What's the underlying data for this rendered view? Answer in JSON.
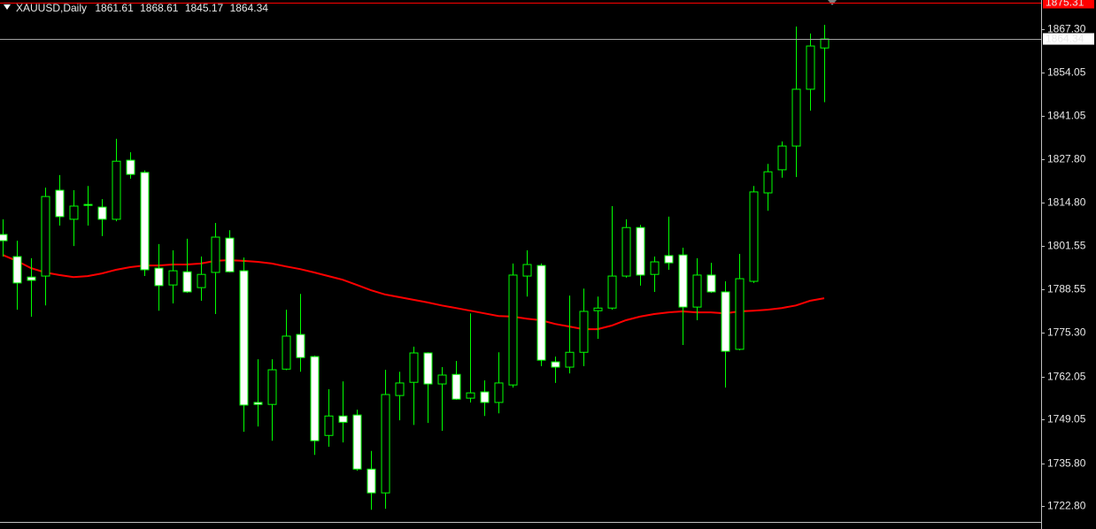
{
  "chart_data": {
    "type": "candlestick",
    "symbol": "XAUUSD,Daily",
    "open": [
      1805.1,
      1798.4,
      1792.2,
      1792.5,
      1818.5,
      1809.7,
      1814.2,
      1813.4,
      1809.7,
      1827.6,
      1823.9,
      1794.9,
      1789.8,
      1793.8,
      1789.0,
      1793.6,
      1804.0,
      1794.1,
      1754.2,
      1753.6,
      1764.3,
      1774.8,
      1768.1,
      1744.2,
      1750.1,
      1750.4,
      1734.0,
      1726.8,
      1756.3,
      1760.3,
      1769.2,
      1759.8,
      1762.7,
      1755.5,
      1757.4,
      1754.2,
      1759.5,
      1792.5,
      1795.7,
      1766.5,
      1764.9,
      1769.4,
      1782.0,
      1782.8,
      1792.5,
      1807.2,
      1793.0,
      1798.7,
      1798.9,
      1783.1,
      1792.8,
      1787.7,
      1770.3,
      1790.9,
      1817.7,
      1824.7,
      1831.9,
      1849.1,
      1861.61
    ],
    "high": [
      1809.7,
      1803.2,
      1797.9,
      1819.3,
      1823.1,
      1818.5,
      1819.8,
      1815.8,
      1834.1,
      1830.0,
      1824.5,
      1802.2,
      1800.3,
      1803.8,
      1798.4,
      1808.6,
      1806.4,
      1798.1,
      1767.3,
      1767.3,
      1782.3,
      1787.1,
      1768.4,
      1758.2,
      1760.6,
      1752.0,
      1739.5,
      1764.1,
      1763.5,
      1771.1,
      1769.4,
      1764.9,
      1766.8,
      1781.2,
      1760.9,
      1769.4,
      1796.3,
      1800.3,
      1796.3,
      1768.1,
      1786.6,
      1788.7,
      1786.3,
      1813.7,
      1809.7,
      1808.0,
      1798.4,
      1810.5,
      1801.1,
      1797.9,
      1796.5,
      1790.9,
      1799.2,
      1819.8,
      1826.5,
      1833.3,
      1868.1,
      1866.0,
      1868.61
    ],
    "low": [
      1798.4,
      1782.3,
      1780.2,
      1783.6,
      1807.8,
      1801.6,
      1807.8,
      1804.6,
      1809.1,
      1822.0,
      1792.5,
      1782.0,
      1784.2,
      1787.4,
      1785.0,
      1781.0,
      1793.6,
      1745.3,
      1746.9,
      1742.6,
      1764.0,
      1763.5,
      1738.3,
      1740.8,
      1742.1,
      1733.5,
      1721.7,
      1722.0,
      1748.8,
      1747.4,
      1748.0,
      1745.6,
      1755.0,
      1754.2,
      1750.1,
      1750.9,
      1758.7,
      1786.3,
      1765.2,
      1760.1,
      1763.0,
      1765.2,
      1773.5,
      1782.3,
      1792.0,
      1789.6,
      1787.7,
      1794.4,
      1771.6,
      1779.1,
      1787.4,
      1758.7,
      1770.0,
      1790.4,
      1812.3,
      1822.3,
      1822.5,
      1842.6,
      1845.17
    ],
    "close": [
      1803.2,
      1790.4,
      1791.2,
      1816.6,
      1810.5,
      1813.7,
      1813.9,
      1809.7,
      1827.3,
      1823.3,
      1794.4,
      1789.6,
      1794.1,
      1787.7,
      1793.0,
      1804.3,
      1793.8,
      1753.4,
      1753.6,
      1764.1,
      1774.3,
      1767.8,
      1742.6,
      1750.1,
      1748.2,
      1734.0,
      1726.8,
      1756.6,
      1760.1,
      1769.2,
      1759.8,
      1762.5,
      1755.2,
      1757.1,
      1754.2,
      1760.1,
      1792.8,
      1796.0,
      1767.0,
      1764.9,
      1769.4,
      1781.8,
      1782.8,
      1792.5,
      1807.2,
      1792.8,
      1796.8,
      1796.5,
      1783.1,
      1792.8,
      1787.7,
      1769.7,
      1791.7,
      1818.0,
      1824.1,
      1831.9,
      1849.1,
      1862.2,
      1864.34
    ],
    "moving_average": {
      "color": "#ff0000",
      "values": [
        1798.9,
        1797.1,
        1794.9,
        1793.6,
        1792.8,
        1792.2,
        1792.5,
        1793.3,
        1794.4,
        1795.2,
        1795.7,
        1795.7,
        1796.0,
        1796.0,
        1796.3,
        1797.1,
        1797.3,
        1797.1,
        1796.8,
        1796.3,
        1795.4,
        1794.6,
        1793.6,
        1792.5,
        1791.4,
        1789.8,
        1788.2,
        1786.9,
        1786.1,
        1785.3,
        1784.5,
        1783.6,
        1782.8,
        1782.0,
        1781.2,
        1780.4,
        1780.2,
        1779.6,
        1779.1,
        1778.0,
        1777.2,
        1776.4,
        1776.4,
        1777.5,
        1779.1,
        1780.2,
        1781.0,
        1781.5,
        1781.8,
        1781.5,
        1781.5,
        1781.2,
        1781.8,
        1782.0,
        1782.3,
        1782.8,
        1783.6,
        1785.0,
        1785.8
      ]
    },
    "level": {
      "value": 1875.31,
      "color": "#ff0000"
    },
    "bull_color": "#000000",
    "bear_color": "#ffffff",
    "wick_color": "#00ff00",
    "ylim": [
      1718.0,
      1875.34
    ],
    "yticks": [
      {
        "value": 1722.8,
        "label": "1722.80"
      },
      {
        "value": 1735.8,
        "label": "1735.80"
      },
      {
        "value": 1749.05,
        "label": "1749.05"
      },
      {
        "value": 1762.05,
        "label": "1762.05"
      },
      {
        "value": 1775.3,
        "label": "1775.30"
      },
      {
        "value": 1788.55,
        "label": "1788.55"
      },
      {
        "value": 1801.55,
        "label": "1801.55"
      },
      {
        "value": 1814.8,
        "label": "1814.80"
      },
      {
        "value": 1827.8,
        "label": "1827.80"
      },
      {
        "value": 1841.05,
        "label": "1841.05"
      },
      {
        "value": 1854.05,
        "label": "1854.05"
      },
      {
        "value": 1867.3,
        "label": "1867.30"
      }
    ],
    "grid": false
  }
}
